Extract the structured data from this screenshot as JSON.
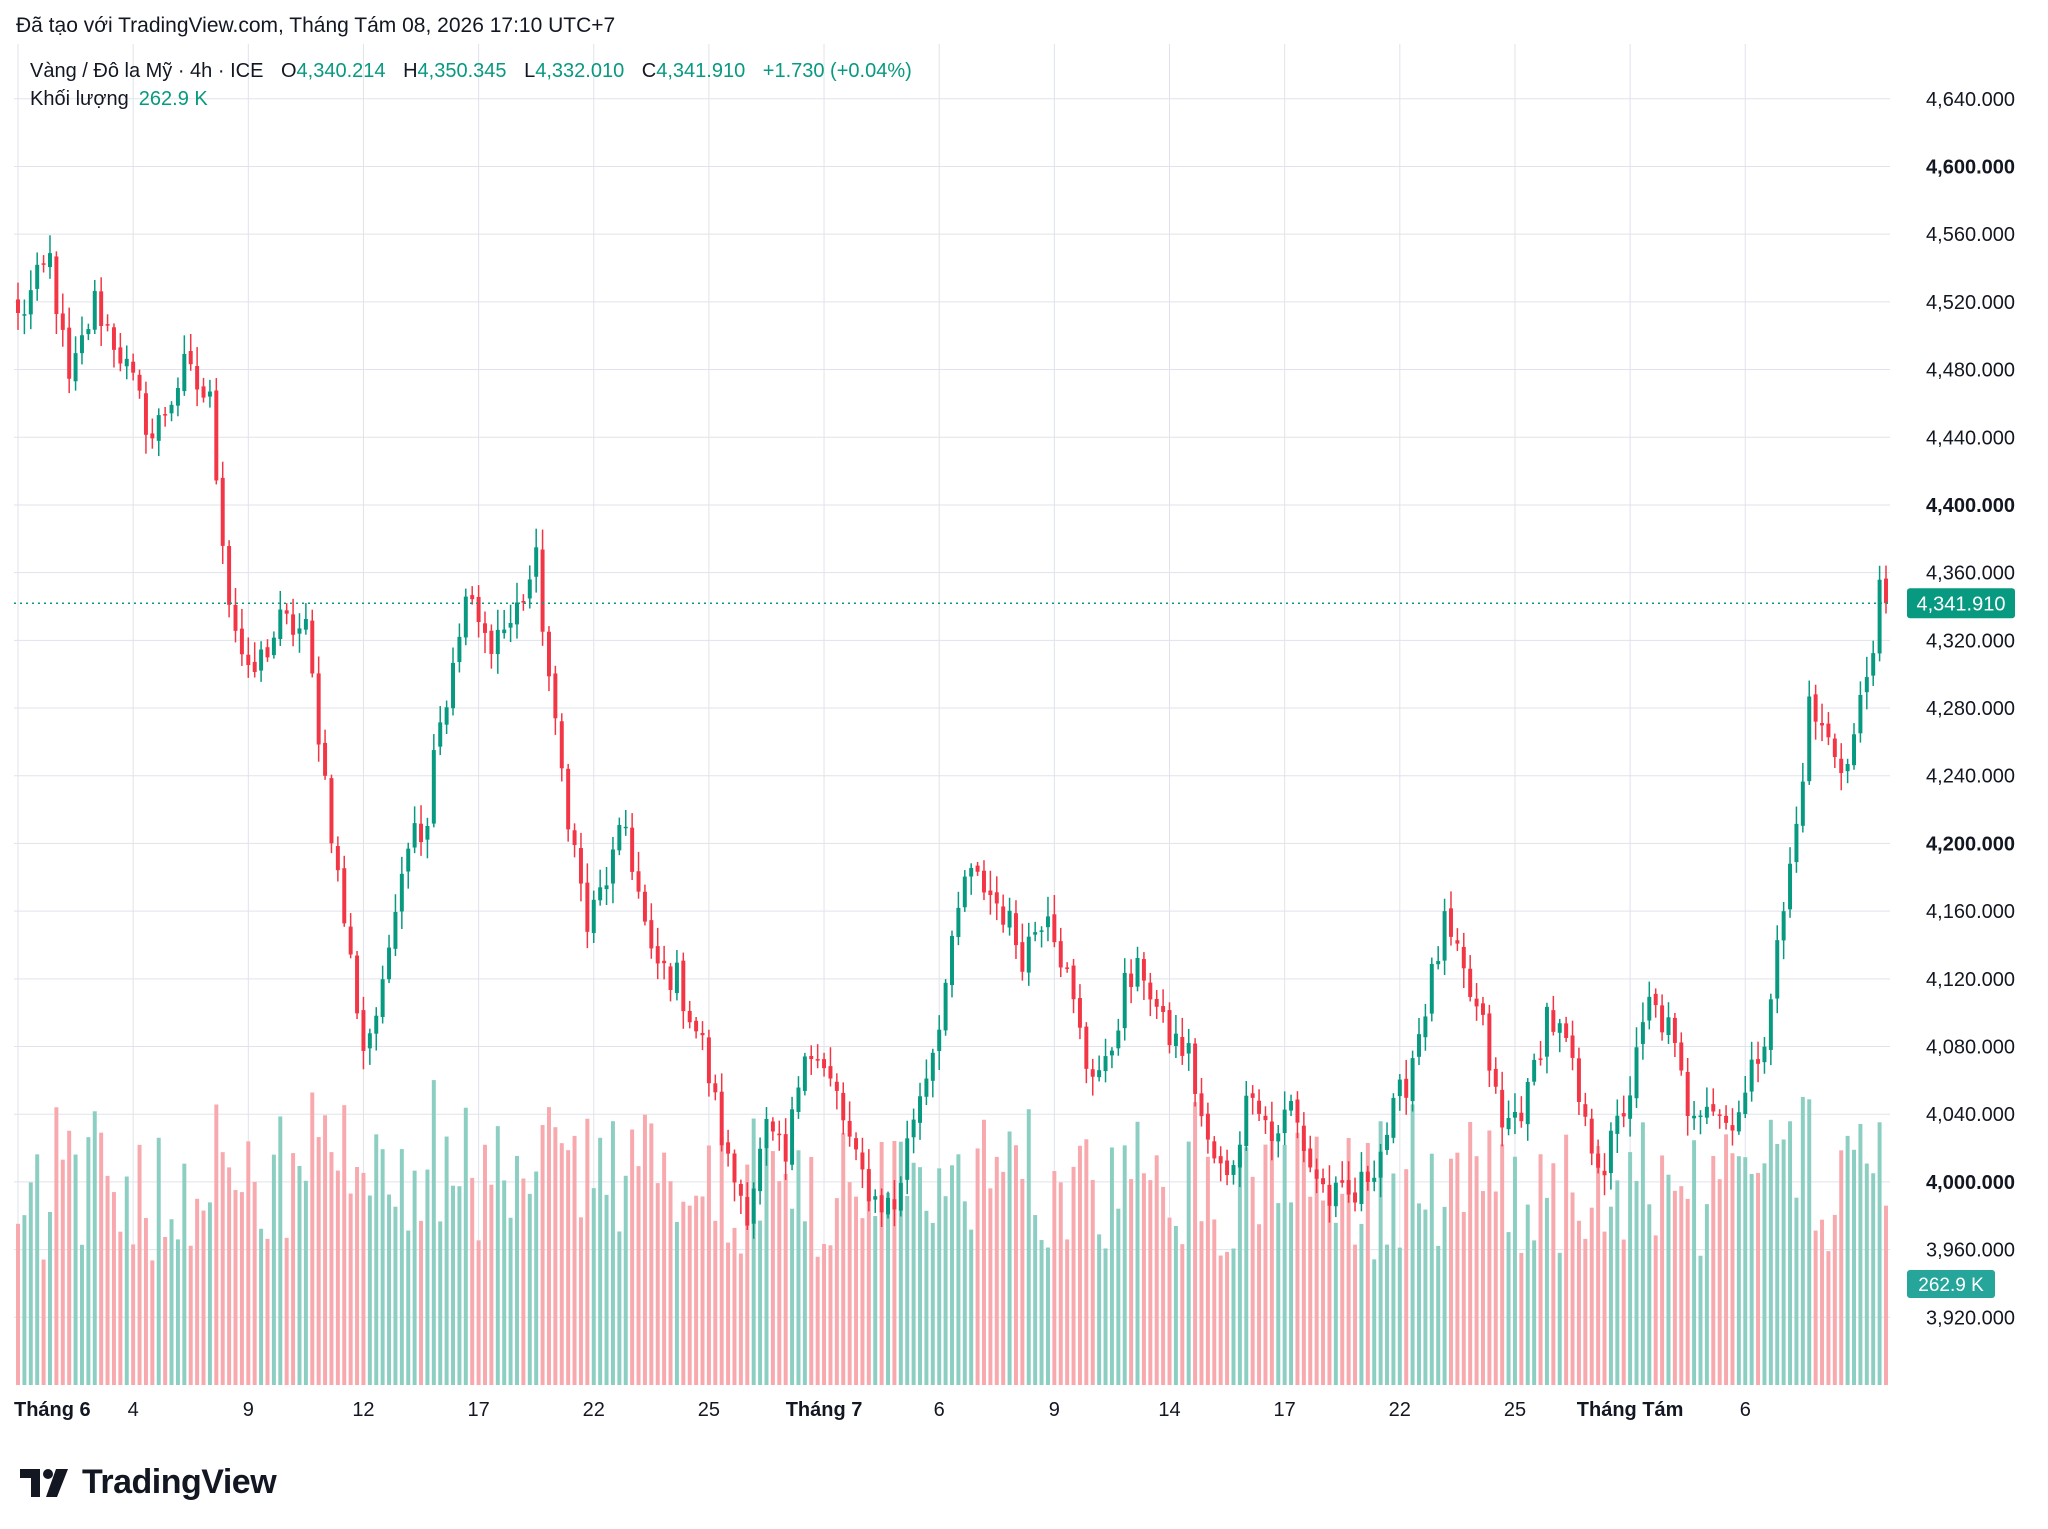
{
  "caption": "Đã tạo với TradingView.com, Tháng Tám 08, 2026 17:10 UTC+7",
  "legend": {
    "symbol": "Vàng / Đô la Mỹ · 4h · ICE",
    "open_label": "O",
    "open": "4,340.214",
    "high_label": "H",
    "high": "4,350.345",
    "low_label": "L",
    "low": "4,332.010",
    "close_label": "C",
    "close": "4,341.910",
    "change": "+1.730 (+0.04%)",
    "volume_label": "Khối lượng",
    "volume": "262.9 K"
  },
  "colors": {
    "up": "#089981",
    "down": "#f23645",
    "up_vol": "#8ccfc2",
    "down_vol": "#f7a9ae",
    "grid": "#e0e3eb",
    "text": "#131722"
  },
  "logo": {
    "text": "TradingView",
    "icon": "tradingview-logo-icon"
  },
  "chart_data": {
    "type": "candlestick",
    "ylim": [
      3880,
      4670
    ],
    "y_ticks": [
      {
        "value": 3920,
        "label": "3,920.000",
        "bold": false
      },
      {
        "value": 3960,
        "label": "3,960.000",
        "bold": false
      },
      {
        "value": 4000,
        "label": "4,000.000",
        "bold": true
      },
      {
        "value": 4040,
        "label": "4,040.000",
        "bold": false
      },
      {
        "value": 4080,
        "label": "4,080.000",
        "bold": false
      },
      {
        "value": 4120,
        "label": "4,120.000",
        "bold": false
      },
      {
        "value": 4160,
        "label": "4,160.000",
        "bold": false
      },
      {
        "value": 4200,
        "label": "4,200.000",
        "bold": true
      },
      {
        "value": 4240,
        "label": "4,240.000",
        "bold": false
      },
      {
        "value": 4280,
        "label": "4,280.000",
        "bold": false
      },
      {
        "value": 4320,
        "label": "4,320.000",
        "bold": false
      },
      {
        "value": 4360,
        "label": "4,360.000",
        "bold": false
      },
      {
        "value": 4400,
        "label": "4,400.000",
        "bold": true
      },
      {
        "value": 4440,
        "label": "4,440.000",
        "bold": false
      },
      {
        "value": 4480,
        "label": "4,480.000",
        "bold": false
      },
      {
        "value": 4520,
        "label": "4,520.000",
        "bold": false
      },
      {
        "value": 4560,
        "label": "4,560.000",
        "bold": false
      },
      {
        "value": 4600,
        "label": "4,600.000",
        "bold": true
      },
      {
        "value": 4640,
        "label": "4,640.000",
        "bold": false
      }
    ],
    "x_ticks": [
      {
        "index": 0,
        "label": "Tháng 6",
        "bold": true
      },
      {
        "index": 18,
        "label": "4",
        "bold": false
      },
      {
        "index": 36,
        "label": "9",
        "bold": false
      },
      {
        "index": 54,
        "label": "12",
        "bold": false
      },
      {
        "index": 72,
        "label": "17",
        "bold": false
      },
      {
        "index": 90,
        "label": "22",
        "bold": false
      },
      {
        "index": 108,
        "label": "25",
        "bold": false
      },
      {
        "index": 126,
        "label": "Tháng 7",
        "bold": true
      },
      {
        "index": 144,
        "label": "6",
        "bold": false
      },
      {
        "index": 162,
        "label": "9",
        "bold": false
      },
      {
        "index": 180,
        "label": "14",
        "bold": false
      },
      {
        "index": 198,
        "label": "17",
        "bold": false
      },
      {
        "index": 216,
        "label": "22",
        "bold": false
      },
      {
        "index": 234,
        "label": "25",
        "bold": false
      },
      {
        "index": 252,
        "label": "Tháng Tám",
        "bold": true
      },
      {
        "index": 270,
        "label": "6",
        "bold": false
      }
    ],
    "last_price": 4341.91,
    "last_price_label": "4,341.910",
    "volume_label": "262.9 K",
    "volume_max_k": 420,
    "anchors": [
      [
        0,
        4510
      ],
      [
        5,
        4545
      ],
      [
        8,
        4470
      ],
      [
        12,
        4520
      ],
      [
        16,
        4490
      ],
      [
        21,
        4440
      ],
      [
        26,
        4480
      ],
      [
        30,
        4460
      ],
      [
        33,
        4345
      ],
      [
        36,
        4295
      ],
      [
        41,
        4330
      ],
      [
        45,
        4325
      ],
      [
        50,
        4180
      ],
      [
        54,
        4080
      ],
      [
        57,
        4110
      ],
      [
        59,
        4170
      ],
      [
        61,
        4205
      ],
      [
        64,
        4215
      ],
      [
        65,
        4260
      ],
      [
        68,
        4300
      ],
      [
        70,
        4345
      ],
      [
        73,
        4320
      ],
      [
        77,
        4330
      ],
      [
        81,
        4365
      ],
      [
        84,
        4265
      ],
      [
        89,
        4150
      ],
      [
        92,
        4180
      ],
      [
        95,
        4210
      ],
      [
        99,
        4130
      ],
      [
        103,
        4120
      ],
      [
        107,
        4080
      ],
      [
        111,
        4010
      ],
      [
        114,
        3985
      ],
      [
        117,
        4030
      ],
      [
        120,
        4010
      ],
      [
        123,
        4085
      ],
      [
        128,
        4050
      ],
      [
        131,
        4010
      ],
      [
        134,
        3990
      ],
      [
        137,
        3985
      ],
      [
        140,
        4040
      ],
      [
        143,
        4080
      ],
      [
        146,
        4135
      ],
      [
        148,
        4180
      ],
      [
        151,
        4175
      ],
      [
        154,
        4160
      ],
      [
        157,
        4135
      ],
      [
        161,
        4165
      ],
      [
        164,
        4120
      ],
      [
        167,
        4070
      ],
      [
        170,
        4065
      ],
      [
        173,
        4115
      ],
      [
        176,
        4125
      ],
      [
        179,
        4090
      ],
      [
        183,
        4075
      ],
      [
        186,
        4020
      ],
      [
        189,
        4000
      ],
      [
        193,
        4060
      ],
      [
        196,
        4025
      ],
      [
        199,
        4045
      ],
      [
        202,
        4010
      ],
      [
        205,
        3990
      ],
      [
        209,
        3990
      ],
      [
        213,
        4020
      ],
      [
        217,
        4060
      ],
      [
        220,
        4105
      ],
      [
        223,
        4150
      ],
      [
        226,
        4120
      ],
      [
        229,
        4090
      ],
      [
        232,
        4030
      ],
      [
        236,
        4050
      ],
      [
        239,
        4100
      ],
      [
        242,
        4080
      ],
      [
        245,
        4030
      ],
      [
        248,
        4010
      ],
      [
        252,
        4055
      ],
      [
        255,
        4105
      ],
      [
        258,
        4090
      ],
      [
        261,
        4045
      ],
      [
        264,
        4050
      ],
      [
        267,
        4035
      ],
      [
        270,
        4050
      ],
      [
        273,
        4090
      ],
      [
        276,
        4160
      ],
      [
        278,
        4210
      ],
      [
        280,
        4280
      ],
      [
        283,
        4260
      ],
      [
        286,
        4245
      ],
      [
        289,
        4300
      ],
      [
        291,
        4345
      ],
      [
        292,
        4341.91
      ]
    ]
  }
}
